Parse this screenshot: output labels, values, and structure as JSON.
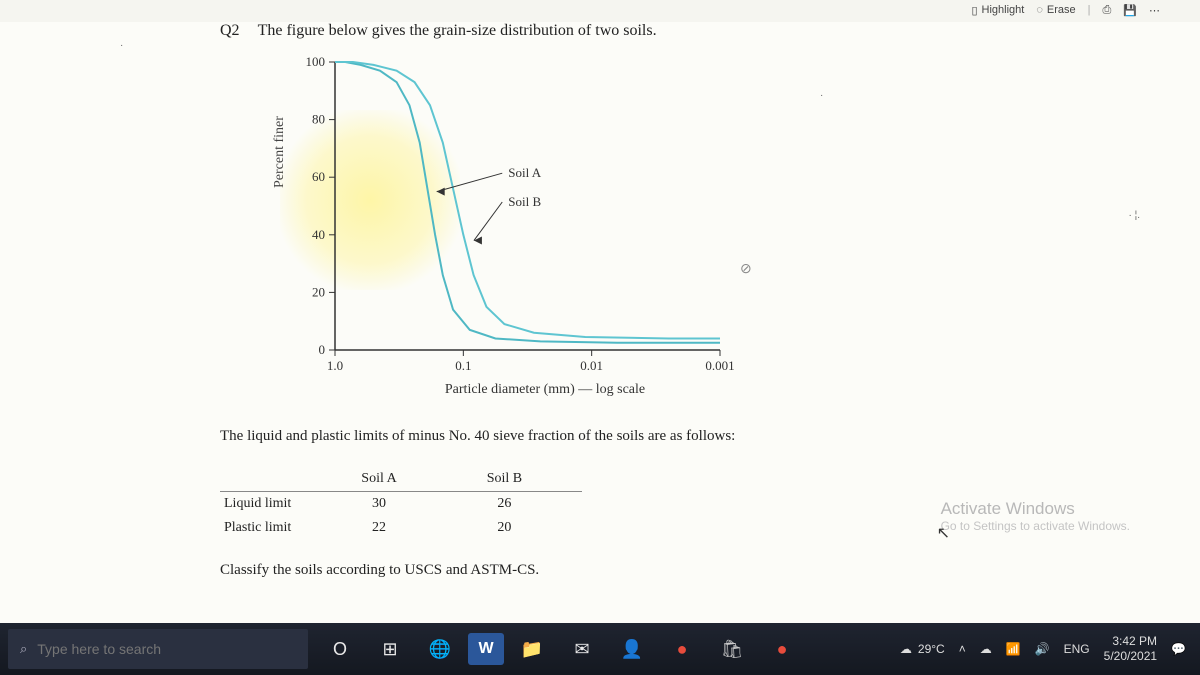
{
  "toolbar": {
    "highlight_label": "Highlight",
    "erase_label": "Erase"
  },
  "question": {
    "label": "Q2",
    "text": "The figure below gives the grain-size distribution of two soils."
  },
  "chart": {
    "type": "line",
    "y_label": "Percent finer",
    "x_label": "Particle diameter (mm) — log scale",
    "y_ticks": [
      0,
      20,
      40,
      60,
      80,
      100
    ],
    "y_lim": [
      0,
      100
    ],
    "x_ticks": [
      "1.0",
      "0.1",
      "0.01",
      "0.001"
    ],
    "x_tick_positions": [
      0,
      1,
      2,
      3
    ],
    "x_lim_log": [
      0,
      3
    ],
    "label_fontsize": 13,
    "axis_color": "#333333",
    "background_color": "#fcfcf8",
    "highlight_color": "rgba(255,240,100,0.5)",
    "labels": {
      "soilA": "Soil A",
      "soilB": "Soil B"
    },
    "series": [
      {
        "name": "Soil A",
        "color": "#4fb8c4",
        "stroke_width": 2,
        "points_log_x_pct_y": [
          [
            0.0,
            100
          ],
          [
            0.08,
            100
          ],
          [
            0.2,
            99
          ],
          [
            0.35,
            97
          ],
          [
            0.48,
            93
          ],
          [
            0.58,
            85
          ],
          [
            0.66,
            72
          ],
          [
            0.72,
            56
          ],
          [
            0.78,
            40
          ],
          [
            0.84,
            26
          ],
          [
            0.92,
            14
          ],
          [
            1.05,
            7
          ],
          [
            1.25,
            4
          ],
          [
            1.6,
            3
          ],
          [
            2.2,
            2.5
          ],
          [
            3.0,
            2.5
          ]
        ]
      },
      {
        "name": "Soil B",
        "color": "#5ec5d1",
        "stroke_width": 2,
        "points_log_x_pct_y": [
          [
            0.0,
            100
          ],
          [
            0.14,
            100
          ],
          [
            0.3,
            99
          ],
          [
            0.48,
            97
          ],
          [
            0.62,
            93
          ],
          [
            0.74,
            85
          ],
          [
            0.84,
            72
          ],
          [
            0.92,
            56
          ],
          [
            1.0,
            40
          ],
          [
            1.08,
            26
          ],
          [
            1.18,
            15
          ],
          [
            1.32,
            9
          ],
          [
            1.55,
            6
          ],
          [
            1.95,
            4.5
          ],
          [
            2.6,
            4
          ],
          [
            3.0,
            4
          ]
        ]
      }
    ]
  },
  "follow_text": "The liquid and plastic limits of minus No. 40 sieve fraction of the soils are as follows:",
  "limits_table": {
    "columns": [
      "",
      "Soil A",
      "Soil B"
    ],
    "rows": [
      [
        "Liquid limit",
        "30",
        "26"
      ],
      [
        "Plastic limit",
        "22",
        "20"
      ]
    ]
  },
  "classify_text": "Classify the soils according to USCS and ASTM-CS.",
  "watermark": {
    "title": "Activate Windows",
    "sub": "Go to Settings to activate Windows."
  },
  "taskbar": {
    "search_placeholder": "Type here to search",
    "weather_temp": "29°C",
    "lang": "ENG",
    "time": "3:42 PM",
    "date": "5/20/2021"
  },
  "icons": {
    "cortana": "O",
    "taskview": "⊞",
    "edge": "🌐",
    "word": "W",
    "explorer": "📁",
    "mail": "✉",
    "people": "👤",
    "red1": "●",
    "store": "🛍",
    "red2": "●"
  }
}
